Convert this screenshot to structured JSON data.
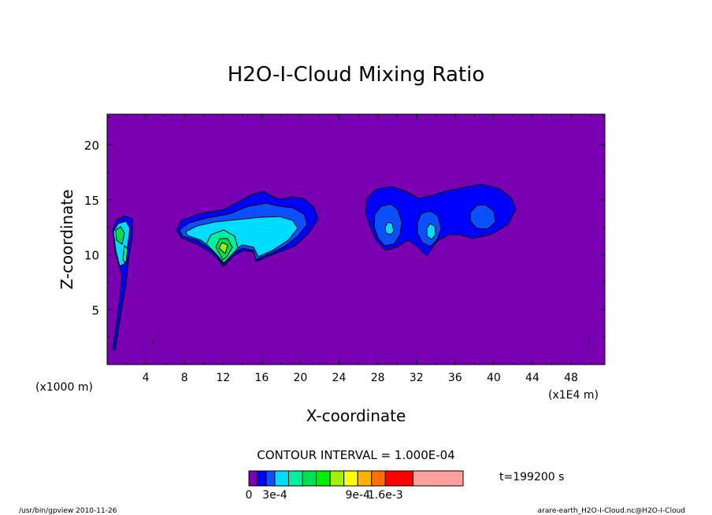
{
  "chart_data": {
    "type": "heatmap",
    "title": "H2O-I-Cloud Mixing Ratio",
    "xlabel": "X-coordinate",
    "ylabel": "Z-coordinate",
    "x_unit_left": "(x1000 m)",
    "x_unit_right": "(x1E4 m)",
    "xlim": [
      0,
      51.5
    ],
    "ylim": [
      0,
      22.8
    ],
    "x_ticks": [
      "4",
      "8",
      "12",
      "16",
      "20",
      "24",
      "28",
      "32",
      "36",
      "40",
      "44",
      "48"
    ],
    "y_ticks": [
      "5",
      "10",
      "15",
      "20"
    ],
    "contour_interval_text": "CONTOUR INTERVAL = 1.000E-04",
    "time_text": "t=199200 s",
    "colorbar": {
      "levels": [
        0,
        0.0001,
        0.0002,
        0.0003,
        0.0004,
        0.0005,
        0.0006,
        0.0007,
        0.0008,
        0.0009,
        0.001,
        0.0012,
        0.0014,
        0.0016
      ],
      "colors": [
        "#7a00b4",
        "#0000ff",
        "#0a50ff",
        "#00dcff",
        "#00f0a0",
        "#00e050",
        "#00f000",
        "#a0f000",
        "#ffff00",
        "#ffb000",
        "#ff7000",
        "#ff0000",
        "#ffa0a0"
      ],
      "labels": [
        "0",
        "3e-4",
        "9e-4",
        "1.6e-3"
      ]
    },
    "background_color": "#7a00b4",
    "footer_left": "/usr/bin/gpview  2010-11-26",
    "footer_right": "arare-earth_H2O-I-Cloud.nc@H2O-I-Cloud"
  }
}
